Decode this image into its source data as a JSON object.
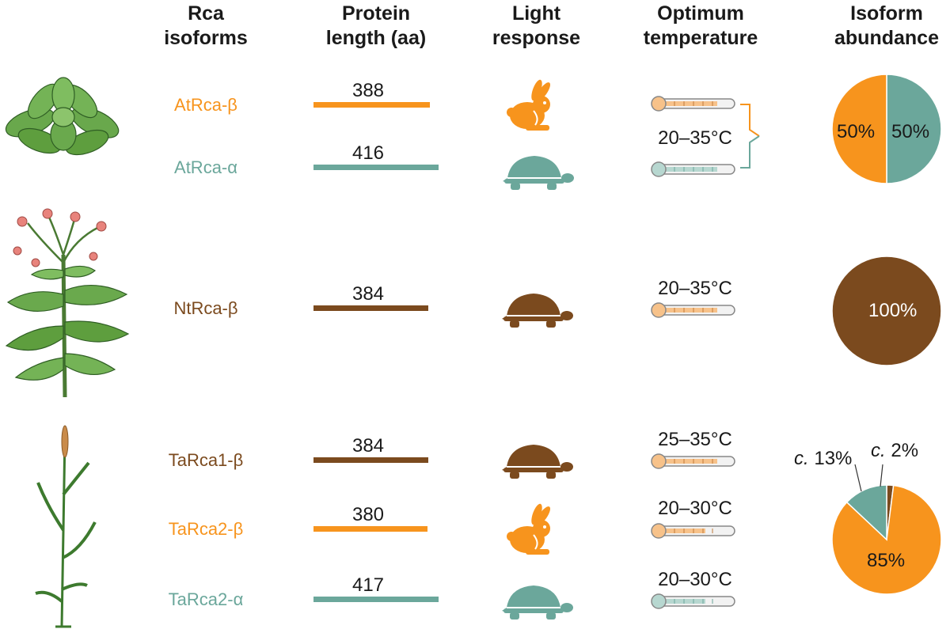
{
  "headers": {
    "isoforms": "Rca\nisoforms",
    "length": "Protein\nlength (aa)",
    "light": "Light\nresponse",
    "temperature": "Optimum\ntemperature",
    "abundance": "Isoform\nabundance"
  },
  "colors": {
    "orange": "#F7941D",
    "teal": "#6BA79B",
    "brown": "#7B4A1E",
    "plant_green": "#5E9E3E",
    "flower_pink": "#E8837C"
  },
  "icons": {
    "rabbit": "rabbit-icon",
    "turtle": "turtle-icon",
    "thermometer": "thermometer-icon",
    "arabidopsis": "arabidopsis-plant-icon",
    "tobacco": "tobacco-plant-icon",
    "wheat": "wheat-plant-icon"
  },
  "rows": [
    {
      "isoform": "AtRca-β",
      "length": "388",
      "length_value": 388,
      "color": "orange",
      "light": "rabbit"
    },
    {
      "isoform": "AtRca-α",
      "length": "416",
      "length_value": 416,
      "color": "teal",
      "light": "turtle"
    },
    {
      "isoform": "NtRca-β",
      "length": "384",
      "length_value": 384,
      "color": "brown",
      "light": "turtle"
    },
    {
      "isoform": "TaRca1-β",
      "length": "384",
      "length_value": 384,
      "color": "brown",
      "light": "turtle"
    },
    {
      "isoform": "TaRca2-β",
      "length": "380",
      "length_value": 380,
      "color": "orange",
      "light": "rabbit"
    },
    {
      "isoform": "TaRca2-α",
      "length": "417",
      "length_value": 417,
      "color": "teal",
      "light": "turtle"
    }
  ],
  "temperatures": {
    "arabidopsis": "20–35°C",
    "tobacco": "20–35°C",
    "wheat1": "25–35°C",
    "wheat2": "20–30°C",
    "wheat3": "20–30°C"
  },
  "abundance": {
    "arabidopsis": {
      "slices": [
        {
          "label": "50%",
          "value": 50,
          "color": "teal"
        },
        {
          "label": "50%",
          "value": 50,
          "color": "orange"
        }
      ]
    },
    "tobacco": {
      "slices": [
        {
          "label": "100%",
          "value": 100,
          "color": "brown"
        }
      ]
    },
    "wheat": {
      "slices": [
        {
          "label": "c. 2%",
          "prefix": "c.",
          "number": "2%",
          "value": 2,
          "color": "brown"
        },
        {
          "label": "85%",
          "value": 85,
          "color": "orange"
        },
        {
          "label": "c. 13%",
          "prefix": "c.",
          "number": "13%",
          "value": 13,
          "color": "teal"
        }
      ]
    }
  }
}
